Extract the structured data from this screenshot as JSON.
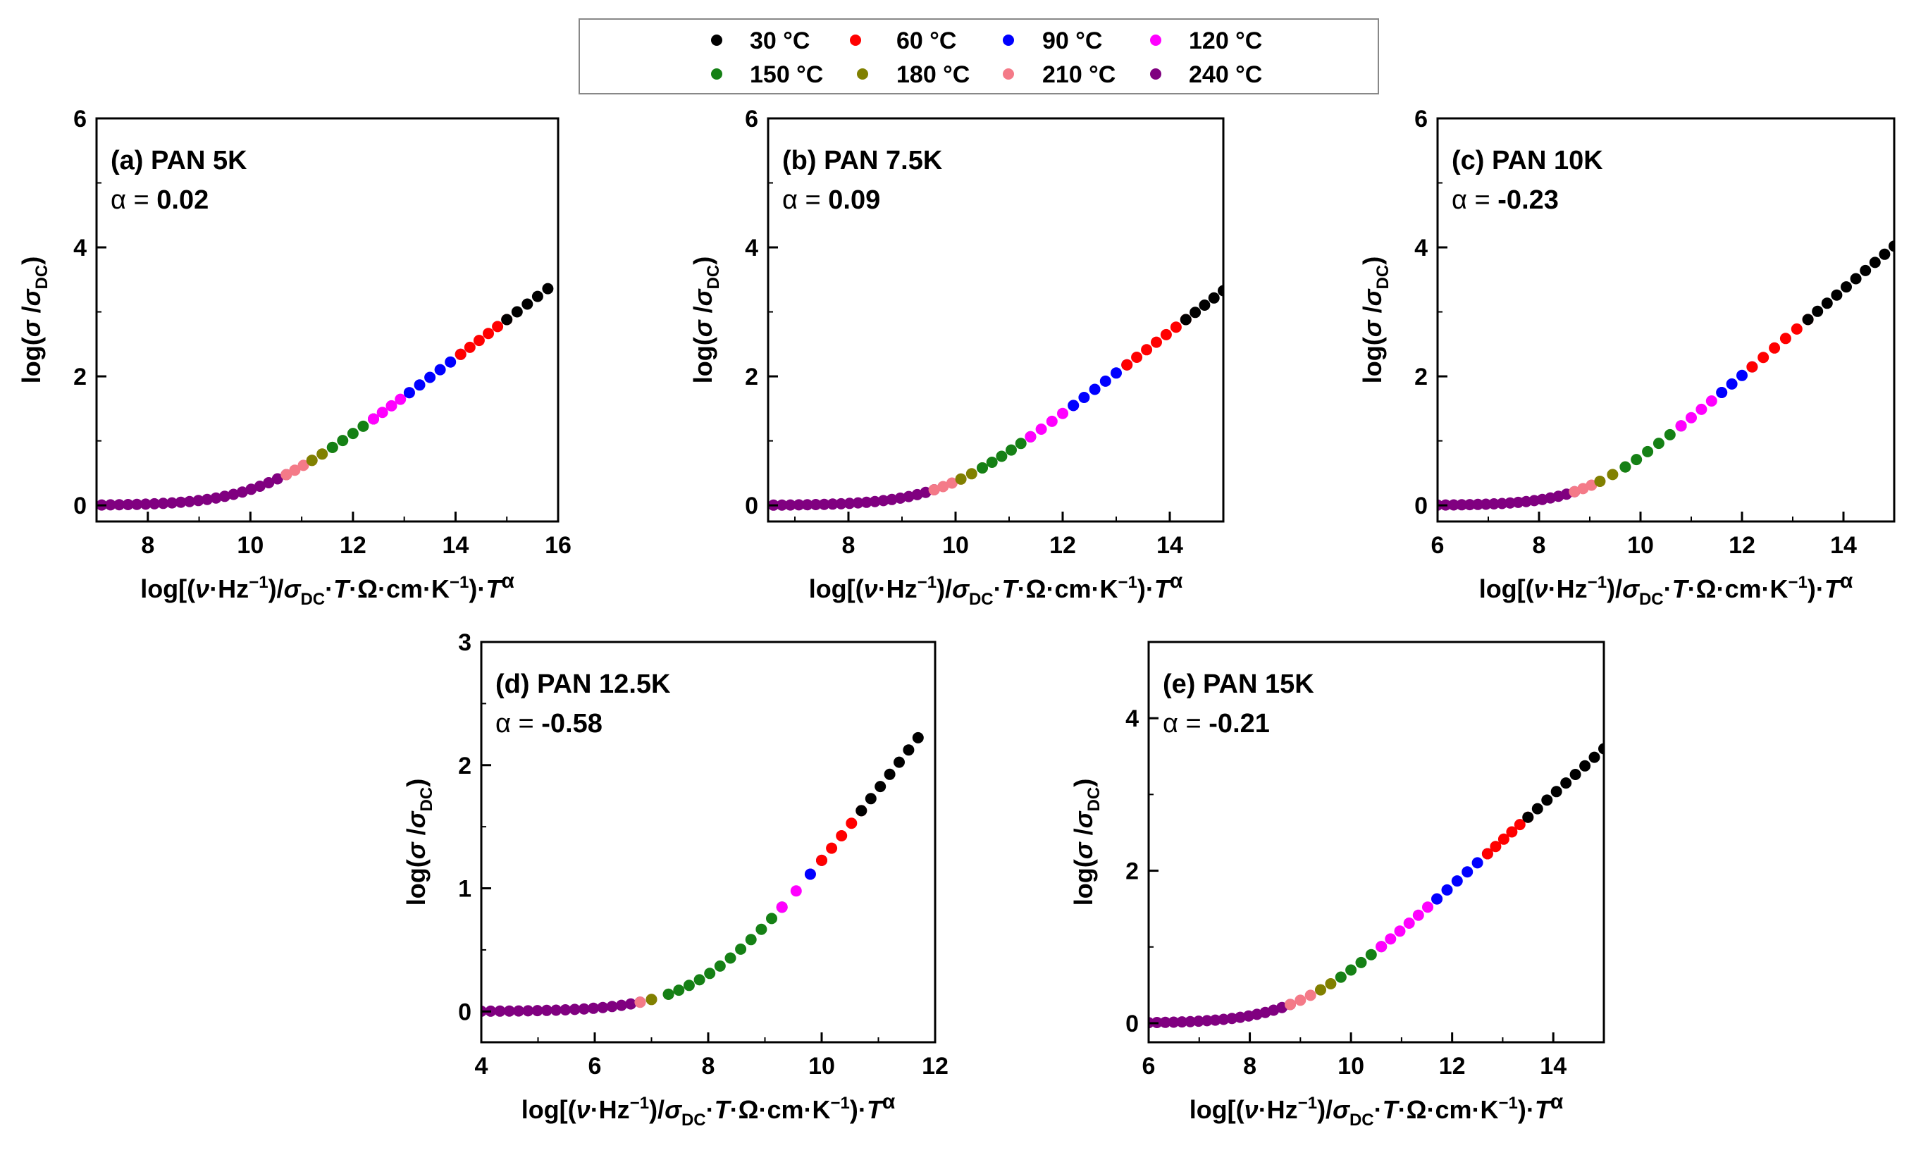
{
  "chart_data": {
    "type": "scatter",
    "legend": {
      "placement": "top-center",
      "entries": [
        {
          "label": "30 °C",
          "color": "#000000"
        },
        {
          "label": "60 °C",
          "color": "#ff0000"
        },
        {
          "label": "90 °C",
          "color": "#0000ff"
        },
        {
          "label": "120 °C",
          "color": "#ff00ff"
        },
        {
          "label": "150 °C",
          "color": "#158015"
        },
        {
          "label": "180 °C",
          "color": "#808000"
        },
        {
          "label": "210 °C",
          "color": "#f47a88"
        },
        {
          "label": "240 °C",
          "color": "#800080"
        }
      ]
    },
    "xlabel": "log[(ν·Hz⁻¹)/σDC·T·Ω·cm·K⁻¹)·Tα]",
    "ylabel": "log(σ /σDC)",
    "panels": [
      {
        "id": "a",
        "title": "(a) PAN 5K",
        "alpha_prefix": "α = ",
        "alpha": "0.02",
        "xlim": [
          7,
          16
        ],
        "ylim": [
          -0.25,
          6
        ],
        "xticks": [
          8,
          10,
          12,
          14,
          16
        ],
        "yticks": [
          0,
          2,
          4,
          6
        ],
        "curve": {
          "logfc": 10.2,
          "n": 0.6,
          "x_start": 7.1
        },
        "series": [
          {
            "temp": "240 °C",
            "x_range": [
              7.1,
              10.7
            ],
            "count": 22
          },
          {
            "temp": "210 °C",
            "x_range": [
              10.7,
              11.2
            ],
            "count": 4
          },
          {
            "temp": "180 °C",
            "x_range": [
              11.2,
              11.6
            ],
            "count": 3
          },
          {
            "temp": "150 °C",
            "x_range": [
              11.6,
              12.4
            ],
            "count": 5
          },
          {
            "temp": "120 °C",
            "x_range": [
              12.4,
              13.1
            ],
            "count": 5
          },
          {
            "temp": "90 °C",
            "x_range": [
              13.1,
              14.1
            ],
            "count": 6
          },
          {
            "temp": "60 °C",
            "x_range": [
              14.1,
              15.0
            ],
            "count": 6
          },
          {
            "temp": "30 °C",
            "x_range": [
              15.0,
              15.8
            ],
            "count": 5
          }
        ]
      },
      {
        "id": "b",
        "title": "(b) PAN 7.5K",
        "alpha_prefix": "α = ",
        "alpha": "0.09",
        "xlim": [
          6.5,
          15
        ],
        "ylim": [
          -0.25,
          6
        ],
        "xticks": [
          8,
          10,
          12,
          14
        ],
        "yticks": [
          0,
          2,
          4,
          6
        ],
        "curve": {
          "logfc": 9.8,
          "n": 0.64,
          "x_start": 6.6
        },
        "series": [
          {
            "temp": "240 °C",
            "x_range": [
              6.6,
              9.6
            ],
            "count": 20
          },
          {
            "temp": "210 °C",
            "x_range": [
              9.6,
              10.1
            ],
            "count": 4
          },
          {
            "temp": "180 °C",
            "x_range": [
              10.1,
              10.5
            ],
            "count": 3
          },
          {
            "temp": "150 °C",
            "x_range": [
              10.5,
              11.4
            ],
            "count": 6
          },
          {
            "temp": "120 °C",
            "x_range": [
              11.4,
              12.2
            ],
            "count": 5
          },
          {
            "temp": "90 °C",
            "x_range": [
              12.2,
              13.2
            ],
            "count": 6
          },
          {
            "temp": "60 °C",
            "x_range": [
              13.2,
              14.3
            ],
            "count": 7
          },
          {
            "temp": "30 °C",
            "x_range": [
              14.3,
              15.0
            ],
            "count": 5
          }
        ]
      },
      {
        "id": "c",
        "title": "(c) PAN 10K",
        "alpha_prefix": "α = ",
        "alpha": "-0.23",
        "xlim": [
          6,
          15
        ],
        "ylim": [
          -0.25,
          6
        ],
        "xticks": [
          6,
          8,
          10,
          12,
          14
        ],
        "yticks": [
          0,
          2,
          4,
          6
        ],
        "curve": {
          "logfc": 9.0,
          "n": 0.67,
          "x_start": 6.0
        },
        "series": [
          {
            "temp": "240 °C",
            "x_range": [
              6.0,
              8.7
            ],
            "count": 18
          },
          {
            "temp": "210 °C",
            "x_range": [
              8.7,
              9.2
            ],
            "count": 4
          },
          {
            "temp": "180 °C",
            "x_range": [
              9.2,
              9.7
            ],
            "count": 3
          },
          {
            "temp": "150 °C",
            "x_range": [
              9.7,
              10.8
            ],
            "count": 6
          },
          {
            "temp": "120 °C",
            "x_range": [
              10.8,
              11.6
            ],
            "count": 5
          },
          {
            "temp": "90 °C",
            "x_range": [
              11.6,
              12.2
            ],
            "count": 4
          },
          {
            "temp": "60 °C",
            "x_range": [
              12.2,
              13.3
            ],
            "count": 6
          },
          {
            "temp": "30 °C",
            "x_range": [
              13.3,
              15.0
            ],
            "count": 10
          }
        ]
      },
      {
        "id": "d",
        "title": "(d) PAN 12.5K",
        "alpha_prefix": "α = ",
        "alpha": "-0.58",
        "xlim": [
          4,
          12
        ],
        "ylim": [
          -0.25,
          3
        ],
        "xticks": [
          4,
          6,
          8,
          10,
          12
        ],
        "yticks": [
          0,
          1,
          2,
          3
        ],
        "curve": {
          "logfc": 8.0,
          "n": 0.6,
          "x_start": 4.0
        },
        "series": [
          {
            "temp": "240 °C",
            "x_range": [
              4.0,
              6.8
            ],
            "count": 18
          },
          {
            "temp": "210 °C",
            "x_range": [
              6.8,
              7.0
            ],
            "count": 2
          },
          {
            "temp": "180 °C",
            "x_range": [
              7.0,
              7.3
            ],
            "count": 2
          },
          {
            "temp": "150 °C",
            "x_range": [
              7.3,
              9.3
            ],
            "count": 12
          },
          {
            "temp": "120 °C",
            "x_range": [
              9.3,
              9.8
            ],
            "count": 3
          },
          {
            "temp": "90 °C",
            "x_range": [
              9.8,
              10.0
            ],
            "count": 2
          },
          {
            "temp": "60 °C",
            "x_range": [
              10.0,
              10.7
            ],
            "count": 5
          },
          {
            "temp": "30 °C",
            "x_range": [
              10.7,
              11.7
            ],
            "count": 7
          }
        ]
      },
      {
        "id": "e",
        "title": "(e) PAN 15K",
        "alpha_prefix": "α = ",
        "alpha": "-0.21",
        "xlim": [
          6,
          15
        ],
        "ylim": [
          -0.25,
          5
        ],
        "xticks": [
          6,
          8,
          10,
          12,
          14
        ],
        "yticks": [
          0,
          2,
          4
        ],
        "curve": {
          "logfc": 9.0,
          "n": 0.6,
          "x_start": 6.0
        },
        "series": [
          {
            "temp": "240 °C",
            "x_range": [
              6.0,
              8.8
            ],
            "count": 18
          },
          {
            "temp": "210 °C",
            "x_range": [
              8.8,
              9.4
            ],
            "count": 4
          },
          {
            "temp": "180 °C",
            "x_range": [
              9.4,
              9.8
            ],
            "count": 3
          },
          {
            "temp": "150 °C",
            "x_range": [
              9.8,
              10.6
            ],
            "count": 5
          },
          {
            "temp": "120 °C",
            "x_range": [
              10.6,
              11.7
            ],
            "count": 7
          },
          {
            "temp": "90 °C",
            "x_range": [
              11.7,
              12.7
            ],
            "count": 6
          },
          {
            "temp": "60 °C",
            "x_range": [
              12.7,
              13.5
            ],
            "count": 6
          },
          {
            "temp": "30 °C",
            "x_range": [
              13.5,
              15.0
            ],
            "count": 9
          }
        ]
      }
    ]
  }
}
